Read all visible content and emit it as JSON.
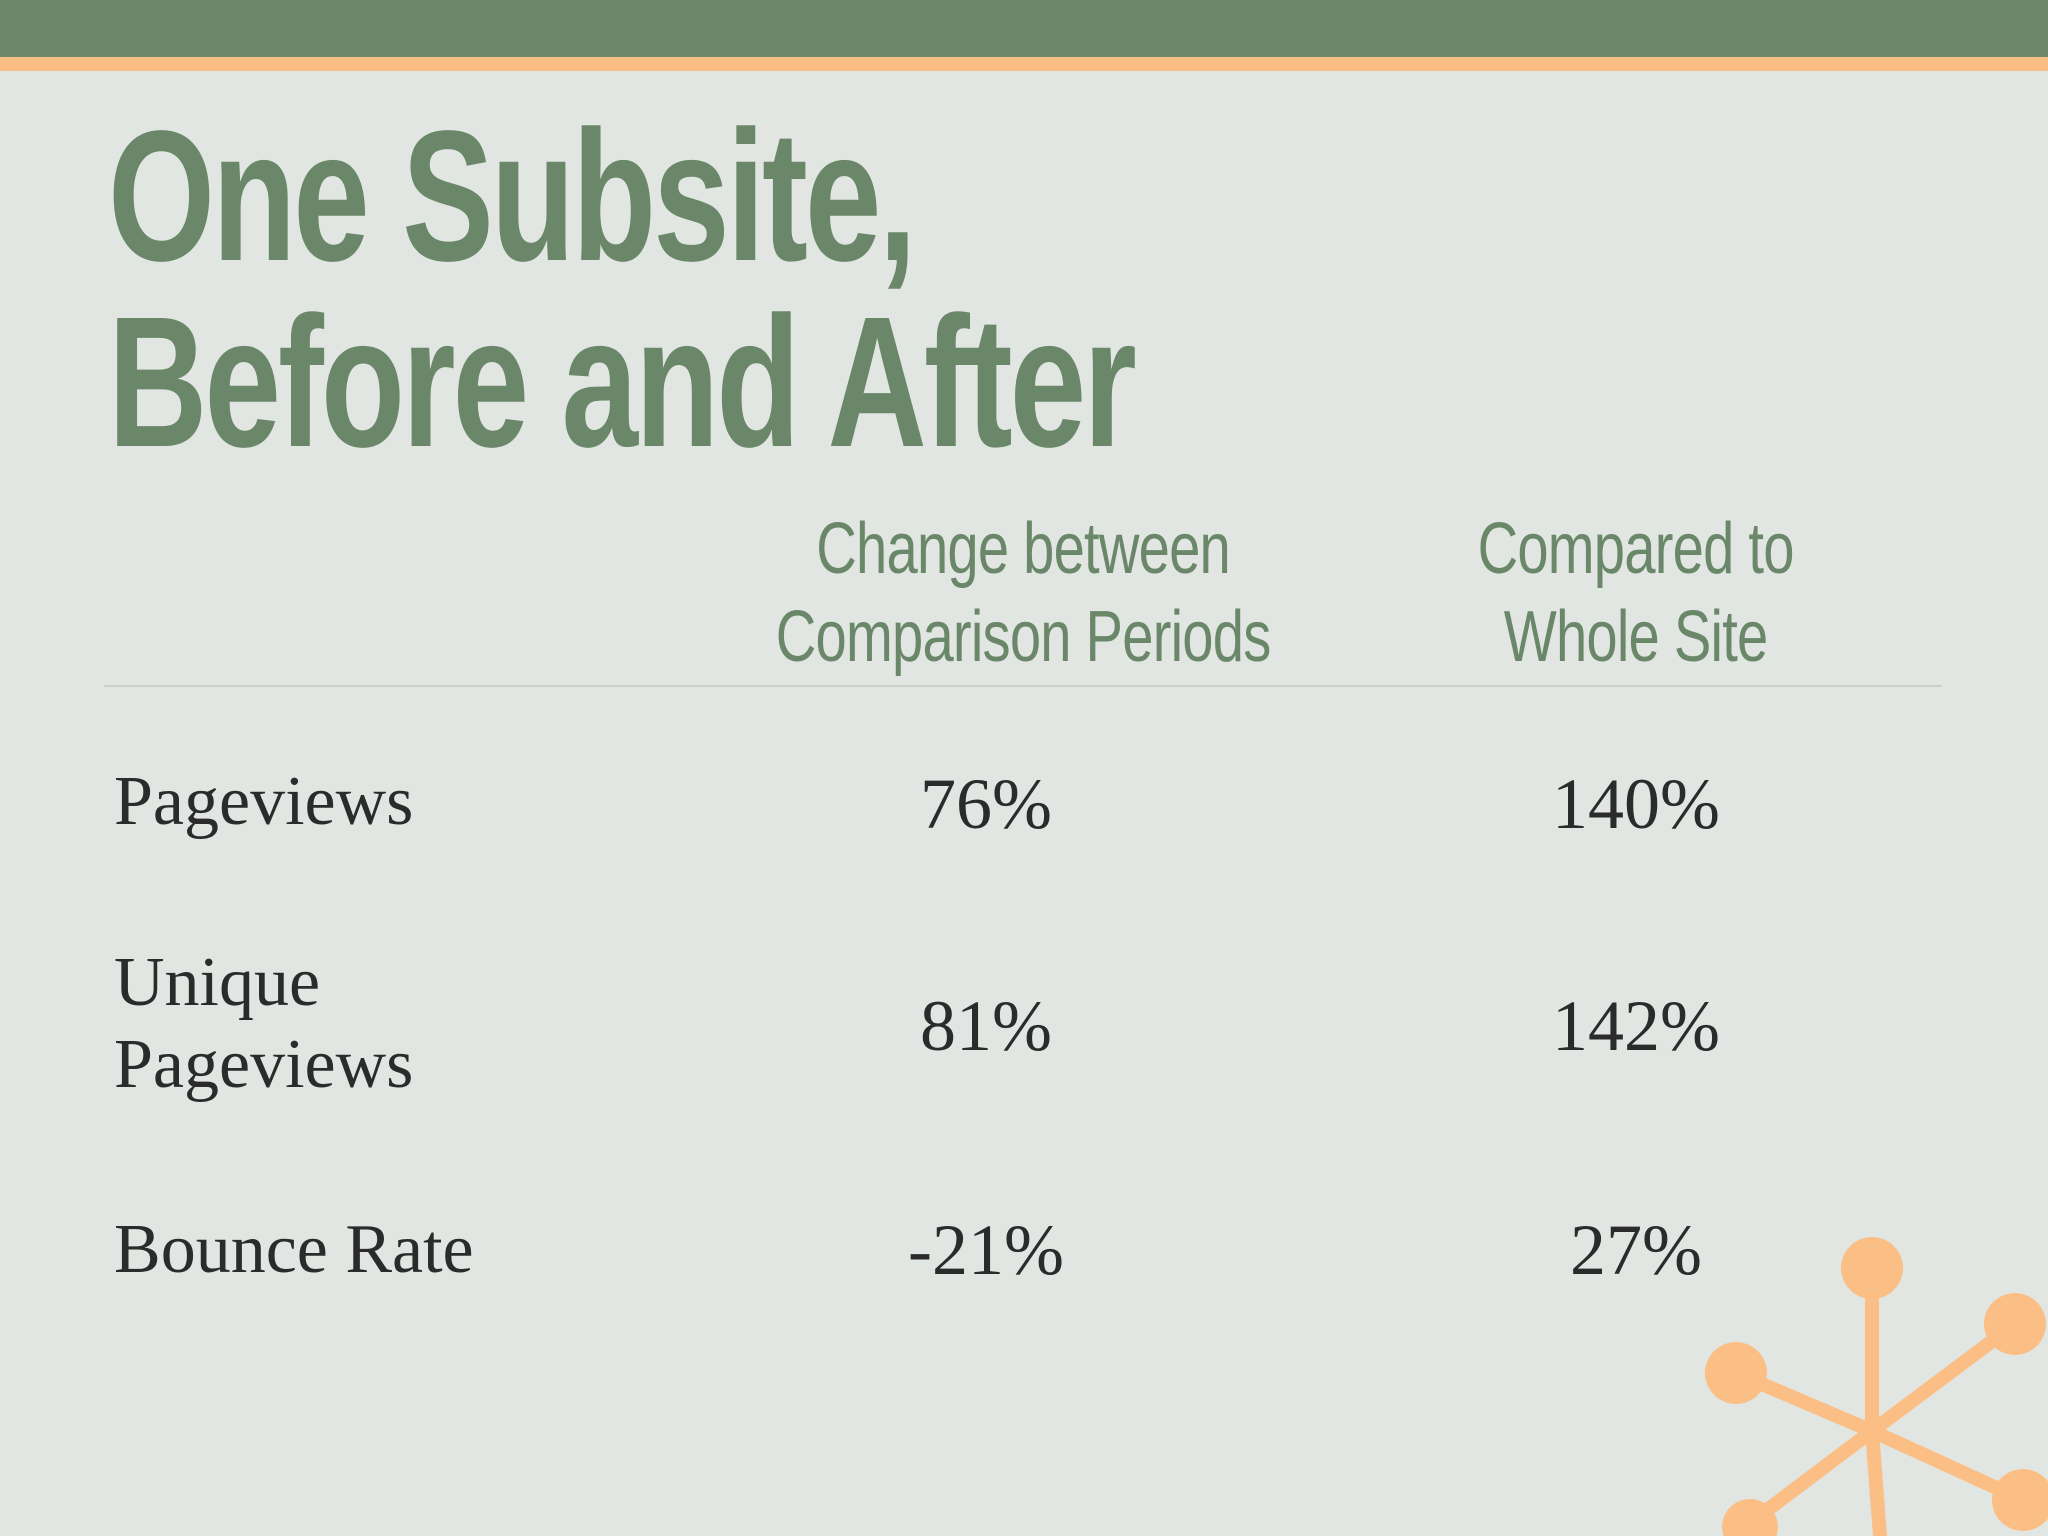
{
  "slide": {
    "title_lines": [
      "One Subsite,",
      "Before and After"
    ]
  },
  "table": {
    "headers": [
      {
        "lines": [
          "Change between",
          "Comparison Periods"
        ]
      },
      {
        "lines": [
          "Compared to",
          "Whole Site"
        ]
      }
    ],
    "rows": [
      {
        "label_lines": [
          "Pageviews"
        ],
        "change": "76%",
        "compared": "140%"
      },
      {
        "label_lines": [
          "Unique",
          "Pageviews"
        ],
        "change": "81%",
        "compared": "142%"
      },
      {
        "label_lines": [
          "Bounce Rate"
        ],
        "change": "-21%",
        "compared": "27%"
      }
    ]
  },
  "colors": {
    "green": "#6a8769",
    "orange": "#fbbf85",
    "background": "#e1e6e2",
    "text": "#2b2b2b"
  },
  "decoration": {
    "icon": "atom-molecule-icon"
  }
}
